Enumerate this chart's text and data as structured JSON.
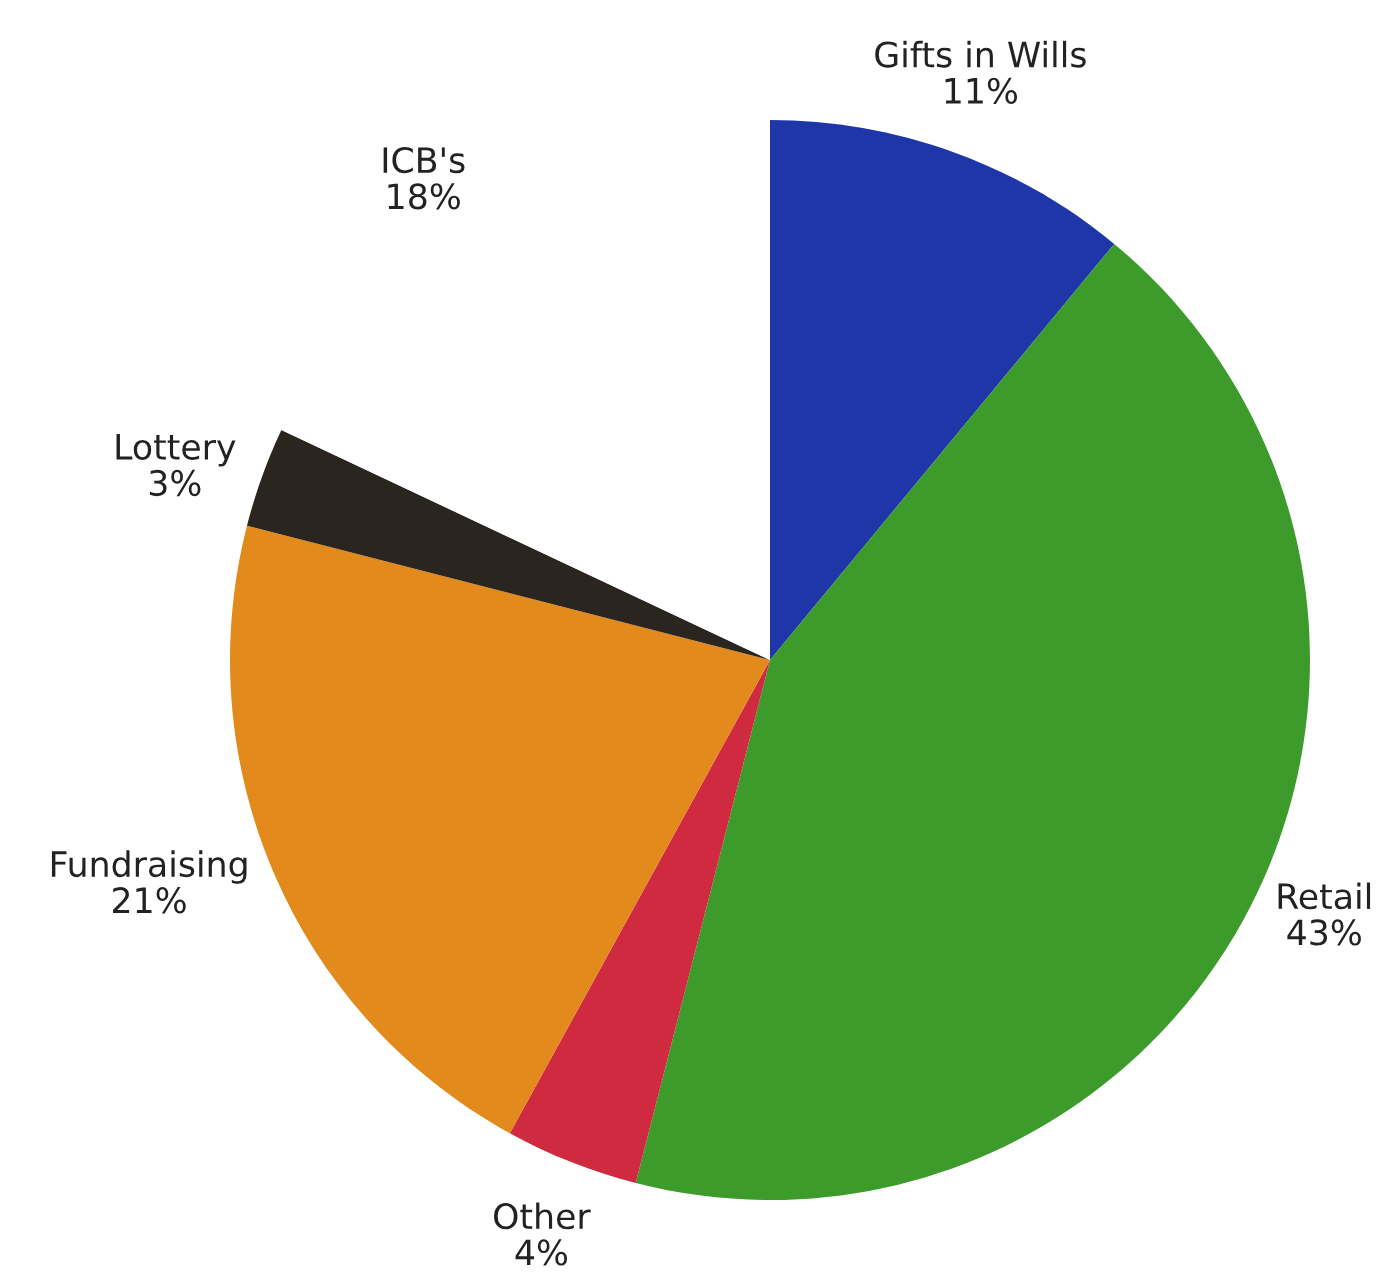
{
  "chart_data": {
    "type": "pie",
    "categories": [
      "Gifts in Wills",
      "Retail",
      "Other",
      "Fundraising",
      "Lottery",
      "ICB's"
    ],
    "values": [
      11,
      43,
      4,
      21,
      3,
      18
    ],
    "value_labels": [
      "11%",
      "43%",
      "4%",
      "21%",
      "3%",
      "18%"
    ],
    "colors": [
      "#1f36a8",
      "#3c9b2b",
      "#d02a40",
      "#e38a1c",
      "#2b2520",
      "#ffffff"
    ]
  }
}
